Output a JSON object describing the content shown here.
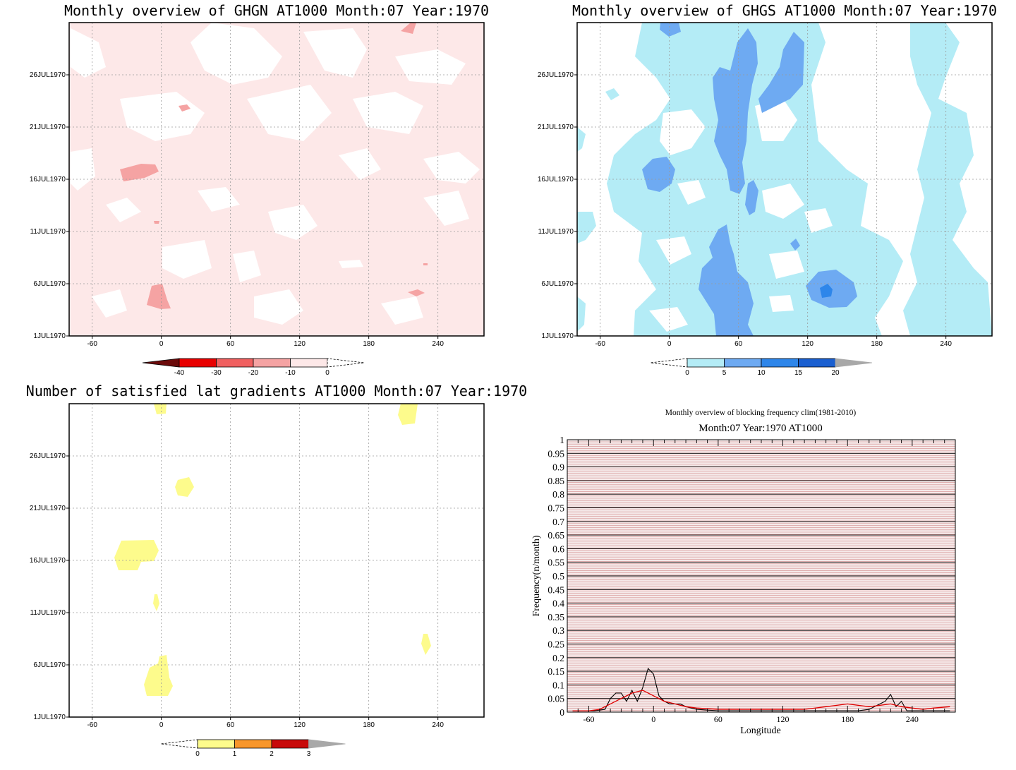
{
  "panels": {
    "ghgn": {
      "title": "Monthly overview of GHGN AT1000 Month:07 Year:1970",
      "xticks": [
        "-60",
        "0",
        "60",
        "120",
        "180",
        "240"
      ],
      "yticks": [
        "1JUL1970",
        "6JUL1970",
        "11JUL1970",
        "16JUL1970",
        "21JUL1970",
        "26JUL1970"
      ],
      "colorbar_labels": [
        "-40",
        "-30",
        "-20",
        "-10",
        "0"
      ],
      "colors": {
        "bg": "#fde8e8",
        "c1": "#f5a3a3",
        "c2": "#f06060",
        "c3": "#e80000",
        "c4": "#6b0a0a"
      }
    },
    "ghgs": {
      "title": "Monthly overview of GHGS AT1000 Month:07 Year:1970",
      "xticks": [
        "-60",
        "0",
        "60",
        "120",
        "180",
        "240"
      ],
      "yticks": [
        "1JUL1970",
        "6JUL1970",
        "11JUL1970",
        "16JUL1970",
        "21JUL1970",
        "26JUL1970"
      ],
      "colorbar_labels": [
        "0",
        "5",
        "10",
        "15",
        "20"
      ],
      "colors": {
        "c1": "#b4ecf6",
        "c2": "#6eaaf2",
        "c3": "#2e86ea",
        "c4": "#1a5fd0",
        "over": "#a8a8a8"
      }
    },
    "lat": {
      "title": "Number of satisfied lat gradients AT1000 Month:07 Year:1970",
      "xticks": [
        "-60",
        "0",
        "60",
        "120",
        "180",
        "240"
      ],
      "yticks": [
        "1JUL1970",
        "6JUL1970",
        "11JUL1970",
        "16JUL1970",
        "21JUL1970",
        "26JUL1970"
      ],
      "colorbar_labels": [
        "0",
        "1",
        "2",
        "3"
      ],
      "colors": {
        "c1": "#fdfb8c",
        "c2": "#f8962a",
        "c3": "#c80a0a",
        "over": "#a8a8a8"
      }
    },
    "freq": {
      "title": "Monthly overview of blocking frequency clim(1981-2010)",
      "subtitle": "Month:07 Year:1970  AT1000"
    }
  },
  "chart_data": [
    {
      "type": "heatmap",
      "title": "Monthly overview of GHGN AT1000 Month:07 Year:1970",
      "x_ticks": [
        -60,
        0,
        60,
        120,
        180,
        240
      ],
      "y_ticks": [
        "1JUL1970",
        "6JUL1970",
        "11JUL1970",
        "16JUL1970",
        "21JUL1970",
        "26JUL1970"
      ],
      "levels": [
        -40,
        -30,
        -20,
        -10,
        0
      ],
      "xlim": [
        -80,
        280
      ],
      "grid": true
    },
    {
      "type": "heatmap",
      "title": "Monthly overview of GHGS AT1000 Month:07 Year:1970",
      "x_ticks": [
        -60,
        0,
        60,
        120,
        180,
        240
      ],
      "y_ticks": [
        "1JUL1970",
        "6JUL1970",
        "11JUL1970",
        "16JUL1970",
        "21JUL1970",
        "26JUL1970"
      ],
      "levels": [
        0,
        5,
        10,
        15,
        20
      ],
      "xlim": [
        -80,
        280
      ],
      "grid": true
    },
    {
      "type": "heatmap",
      "title": "Number of satisfied lat gradients AT1000 Month:07 Year:1970",
      "x_ticks": [
        -60,
        0,
        60,
        120,
        180,
        240
      ],
      "y_ticks": [
        "1JUL1970",
        "6JUL1970",
        "11JUL1970",
        "16JUL1970",
        "21JUL1970",
        "26JUL1970"
      ],
      "levels": [
        0,
        1,
        2,
        3
      ],
      "xlim": [
        -80,
        280
      ],
      "grid": true
    },
    {
      "type": "line",
      "title": "Monthly overview of blocking frequency clim(1981-2010)",
      "subtitle": "Month:07 Year:1970  AT1000",
      "xlabel": "Longitude",
      "ylabel": "Frequency(n/month)",
      "xlim": [
        -80,
        280
      ],
      "ylim": [
        0,
        1
      ],
      "x_ticks": [
        -60,
        0,
        60,
        120,
        180,
        240
      ],
      "y_ticks": [
        "0",
        "0.05",
        "0.1",
        "0.15",
        "0.2",
        "0.25",
        "0.3",
        "0.35",
        "0.4",
        "0.45",
        "0.5",
        "0.55",
        "0.6",
        "0.65",
        "0.7",
        "0.75",
        "0.8",
        "0.85",
        "0.9",
        "0.95",
        "1"
      ],
      "series": [
        {
          "color": "#000000",
          "x": [
            -75,
            -65,
            -55,
            -45,
            -40,
            -35,
            -30,
            -25,
            -20,
            -15,
            -10,
            -5,
            0,
            5,
            10,
            15,
            20,
            25,
            30,
            40,
            60,
            80,
            100,
            120,
            140,
            160,
            180,
            190,
            200,
            210,
            215,
            220,
            225,
            230,
            235,
            240,
            250,
            260,
            275
          ],
          "y": [
            0.005,
            0.005,
            0.005,
            0.01,
            0.05,
            0.07,
            0.07,
            0.04,
            0.08,
            0.04,
            0.09,
            0.16,
            0.14,
            0.06,
            0.04,
            0.03,
            0.03,
            0.03,
            0.02,
            0.01,
            0.005,
            0.005,
            0.005,
            0.005,
            0.005,
            0.005,
            0.005,
            0.005,
            0.01,
            0.03,
            0.04,
            0.065,
            0.02,
            0.04,
            0.005,
            0.005,
            0.005,
            0.005,
            0.005
          ]
        },
        {
          "color": "#e00000",
          "x": [
            -75,
            -60,
            -50,
            -40,
            -30,
            -20,
            -10,
            0,
            10,
            20,
            30,
            40,
            60,
            80,
            100,
            120,
            140,
            160,
            170,
            180,
            190,
            200,
            210,
            220,
            230,
            240,
            250,
            260,
            275
          ],
          "y": [
            0.005,
            0.005,
            0.01,
            0.03,
            0.05,
            0.07,
            0.08,
            0.06,
            0.04,
            0.03,
            0.02,
            0.015,
            0.01,
            0.01,
            0.01,
            0.01,
            0.01,
            0.02,
            0.025,
            0.03,
            0.025,
            0.02,
            0.025,
            0.03,
            0.02,
            0.015,
            0.01,
            0.015,
            0.02
          ]
        }
      ]
    }
  ]
}
